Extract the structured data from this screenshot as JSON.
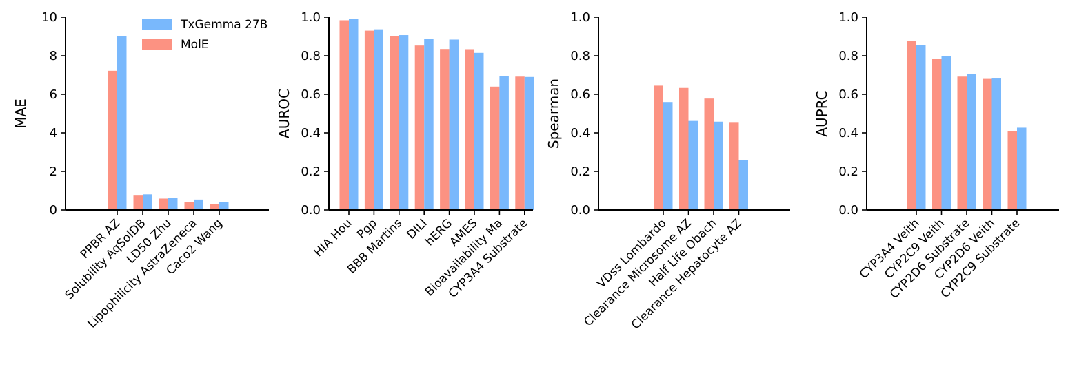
{
  "colors": {
    "txgemma": "#79b8fc",
    "mole": "#fc9282",
    "axis": "#000000"
  },
  "legend": {
    "location": "upper-right of first panel",
    "entries": [
      "TxGemma 27B",
      "MolE"
    ]
  },
  "chart_data": [
    {
      "type": "bar",
      "ylabel": "MAE",
      "ylim": [
        0,
        10
      ],
      "yticks": [
        "0",
        "2",
        "4",
        "6",
        "8",
        "10"
      ],
      "categories": [
        "PPBR AZ",
        "Solubility AqSolDB",
        "LD50 Zhu",
        "Lipophilicity AstraZeneca",
        "Caco2 Wang"
      ],
      "series": [
        {
          "name": "MolE",
          "values": [
            7.22,
            0.78,
            0.59,
            0.42,
            0.32
          ]
        },
        {
          "name": "TxGemma 27B",
          "values": [
            9.02,
            0.81,
            0.62,
            0.54,
            0.4
          ]
        }
      ]
    },
    {
      "type": "bar",
      "ylabel": "AUROC",
      "ylim": [
        0,
        1
      ],
      "yticks": [
        "0.0",
        "0.2",
        "0.4",
        "0.6",
        "0.8",
        "1.0"
      ],
      "categories": [
        "HIA Hou",
        "Pgp",
        "BBB Martins",
        "DILI",
        "hERG",
        "AMES",
        "Bioavailability Ma",
        "CYP3A4 Substrate"
      ],
      "series": [
        {
          "name": "MolE",
          "values": [
            0.984,
            0.93,
            0.903,
            0.853,
            0.835,
            0.834,
            0.64,
            0.692
          ]
        },
        {
          "name": "TxGemma 27B",
          "values": [
            0.99,
            0.937,
            0.907,
            0.887,
            0.884,
            0.815,
            0.696,
            0.69
          ]
        }
      ]
    },
    {
      "type": "bar",
      "ylabel": "Spearman",
      "ylim": [
        0,
        1
      ],
      "yticks": [
        "0.0",
        "0.2",
        "0.4",
        "0.6",
        "0.8",
        "1.0"
      ],
      "categories": [
        "VDss Lombardo",
        "Clearance Microsome AZ",
        "Half Life Obach",
        "Clearance Hepatocyte AZ"
      ],
      "series": [
        {
          "name": "MolE",
          "values": [
            0.645,
            0.633,
            0.578,
            0.456
          ]
        },
        {
          "name": "TxGemma 27B",
          "values": [
            0.56,
            0.462,
            0.458,
            0.26
          ]
        }
      ]
    },
    {
      "type": "bar",
      "ylabel": "AUPRC",
      "ylim": [
        0,
        1
      ],
      "yticks": [
        "0.0",
        "0.2",
        "0.4",
        "0.6",
        "0.8",
        "1.0"
      ],
      "categories": [
        "CYP3A4 Veith",
        "CYP2C9 Veith",
        "CYP2D6 Substrate",
        "CYP2D6 Veith",
        "CYP2C9 Substrate"
      ],
      "series": [
        {
          "name": "MolE",
          "values": [
            0.877,
            0.783,
            0.692,
            0.68,
            0.41
          ]
        },
        {
          "name": "TxGemma 27B",
          "values": [
            0.855,
            0.799,
            0.706,
            0.682,
            0.427
          ]
        }
      ]
    }
  ]
}
